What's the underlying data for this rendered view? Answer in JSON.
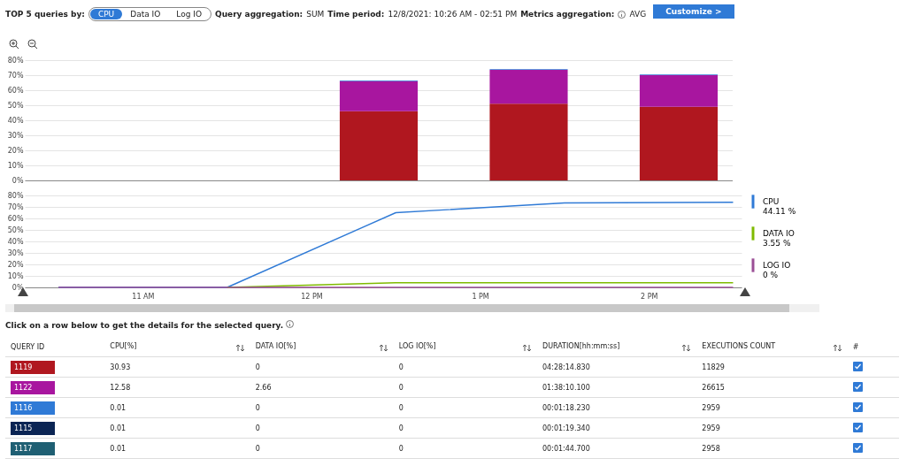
{
  "chart_data": [
    {
      "type": "other",
      "annotations": [
        "TOP 5 queries by:",
        "CPU",
        "Data IO",
        "Log IO",
        "Query aggregation:",
        "SUM",
        "Time period:",
        "12/8/2021: 10:26 AM - 02:51 PM",
        "Metrics aggregation:",
        "AVG",
        "Customize >"
      ]
    },
    {
      "type": "bar",
      "stacked": true,
      "categories": [
        null,
        null,
        null,
        null,
        null
      ],
      "series": [
        {
          "color": "#b0171f",
          "values": [
            null,
            null,
            46,
            51,
            49
          ]
        },
        {
          "color": "#a8169f",
          "values": [
            null,
            null,
            20,
            22.5,
            21
          ]
        },
        {
          "color": "#2f7ad6",
          "values": [
            null,
            null,
            0.5,
            0.5,
            0.5
          ]
        }
      ],
      "ylim": [
        0,
        80
      ],
      "yticks": [
        {
          "value": 0,
          "label": "0%"
        },
        {
          "value": 10,
          "label": "10%"
        },
        {
          "value": 20,
          "label": "20%"
        },
        {
          "value": 30,
          "label": "30%"
        },
        {
          "value": 40,
          "label": "40%"
        },
        {
          "value": 50,
          "label": "50%"
        },
        {
          "value": 60,
          "label": "60%"
        },
        {
          "value": 70,
          "label": "70%"
        },
        {
          "value": 80,
          "label": "80%"
        }
      ],
      "grid": "y"
    },
    {
      "type": "line",
      "x": [
        "2021-12-08T10:30",
        "2021-12-08T11:30",
        "2021-12-08T12:30",
        "2021-12-08T13:30",
        "2021-12-08T14:30"
      ],
      "series": [
        {
          "name": "CPU",
          "color": "#2f7ad6",
          "values": [
            0,
            0,
            65,
            73.5,
            74
          ]
        },
        {
          "name": "DATA IO",
          "color": "#7fba00",
          "values": [
            null,
            0,
            4,
            4,
            4
          ]
        },
        {
          "name": "LOG IO",
          "color": "#9b4f96",
          "values": [
            0,
            0,
            0,
            0,
            0
          ]
        }
      ],
      "annotations": [
        "44.11 %",
        "3.55 %",
        "0 %"
      ],
      "xlim": [
        "2021-12-08T10:18",
        "2021-12-08T14:33"
      ],
      "xticks": [
        {
          "value": "2021-12-08T11:00",
          "label": "11 AM"
        },
        {
          "value": "2021-12-08T12:00",
          "label": "12 PM"
        },
        {
          "value": "2021-12-08T13:00",
          "label": "1 PM"
        },
        {
          "value": "2021-12-08T14:00",
          "label": "2 PM"
        }
      ],
      "ylim": [
        0,
        80
      ],
      "yticks": [
        {
          "value": 0,
          "label": "0%"
        },
        {
          "value": 10,
          "label": "10%"
        },
        {
          "value": 20,
          "label": "20%"
        },
        {
          "value": 30,
          "label": "30%"
        },
        {
          "value": 40,
          "label": "40%"
        },
        {
          "value": 50,
          "label": "50%"
        },
        {
          "value": 60,
          "label": "60%"
        },
        {
          "value": 70,
          "label": "70%"
        },
        {
          "value": 80,
          "label": "80%"
        }
      ],
      "grid": "y",
      "legend": "right"
    },
    {
      "type": "other",
      "title": "Click on a row below to get the details for the selected query.",
      "categories": [
        "QUERY ID",
        "CPU[%]",
        "DATA IO[%]",
        "LOG IO[%]",
        "DURATION[hh:mm:ss]",
        "EXECUTIONS COUNT",
        "#"
      ],
      "colors": [
        "#b0171f",
        "#a8169f",
        "#2f7ad6",
        "#0b2554",
        "#1f5f73"
      ],
      "annotations": [
        "1119",
        "30.93",
        "0",
        "0",
        "04:28:14.830",
        "11829",
        "1122",
        "12.58",
        "2.66",
        "0",
        "01:38:10.100",
        "26615",
        "1116",
        "0.01",
        "0",
        "0",
        "00:01:18.230",
        "2959",
        "1115",
        "0.01",
        "0",
        "0",
        "00:01:19.340",
        "2959",
        "1117",
        "0.01",
        "0",
        "0",
        "00:01:44.700",
        "2958"
      ]
    }
  ]
}
